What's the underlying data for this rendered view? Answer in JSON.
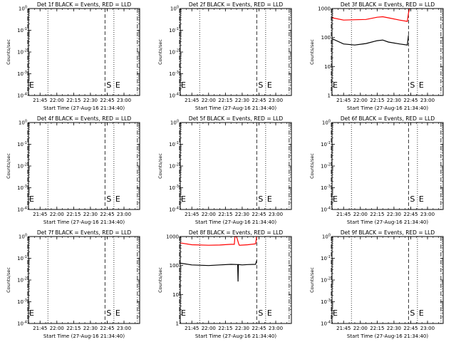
{
  "chart_data": [
    {
      "type": "line",
      "title": "Det 1f BLACK = Events, RED = LLD",
      "xlabel": "Start Time (27-Aug-16 21:34:40)",
      "ylabel": "Counts/sec",
      "x_ticks": [
        "21:45",
        "22:00",
        "22:15",
        "22:30",
        "22:45",
        "23:00"
      ],
      "y_ticks": [
        "10^0",
        "10^-1",
        "10^-2",
        "10^-3",
        "10^-4"
      ],
      "ylim": [
        1,
        0.0001
      ],
      "y_scale": "log",
      "markers": [
        {
          "label": "E",
          "time": "21:34",
          "style": "dashdot"
        },
        {
          "label": "",
          "time": "21:52",
          "style": "dotted"
        },
        {
          "label": "S",
          "time": "22:43",
          "style": "dashed"
        },
        {
          "label": "E",
          "time": "22:51",
          "style": "dotted"
        },
        {
          "label": "",
          "time": "23:12",
          "style": "dashdot"
        }
      ],
      "series": []
    },
    {
      "type": "line",
      "title": "Det 2f BLACK = Events, RED = LLD",
      "xlabel": "Start Time (27-Aug-16 21:34:40)",
      "ylabel": "Counts/sec",
      "x_ticks": [
        "21:45",
        "22:00",
        "22:15",
        "22:30",
        "22:45",
        "23:00"
      ],
      "y_ticks": [
        "10^0",
        "10^-1",
        "10^-2",
        "10^-3",
        "10^-4"
      ],
      "ylim": [
        1,
        0.0001
      ],
      "y_scale": "log",
      "markers": [
        {
          "label": "E",
          "time": "21:34",
          "style": "dashdot"
        },
        {
          "label": "",
          "time": "21:52",
          "style": "dotted"
        },
        {
          "label": "S",
          "time": "22:43",
          "style": "dashed"
        },
        {
          "label": "E",
          "time": "22:51",
          "style": "dotted"
        },
        {
          "label": "",
          "time": "23:12",
          "style": "dashdot"
        }
      ],
      "series": []
    },
    {
      "type": "line",
      "title": "Det 3f BLACK = Events, RED = LLD",
      "xlabel": "Start Time (27-Aug-16 21:34:40)",
      "ylabel": "Counts/sec",
      "x_ticks": [
        "21:45",
        "22:00",
        "22:15",
        "22:30",
        "22:45",
        "23:00"
      ],
      "y_ticks": [
        "1000",
        "100",
        "10",
        "1"
      ],
      "ylim": [
        1,
        1000
      ],
      "y_scale": "log",
      "markers": [
        {
          "label": "E",
          "time": "21:34",
          "style": "dashdot"
        },
        {
          "label": "",
          "time": "21:52",
          "style": "dotted"
        },
        {
          "label": "S",
          "time": "22:43",
          "style": "dashed"
        },
        {
          "label": "E",
          "time": "22:51",
          "style": "dotted"
        },
        {
          "label": "",
          "time": "23:12",
          "style": "dashdot"
        }
      ],
      "series": [
        {
          "color": "#ff0000",
          "x": [
            "21:35",
            "21:45",
            "21:55",
            "22:05",
            "22:15",
            "22:20",
            "22:25",
            "22:35",
            "22:42",
            "22:43",
            "22:44"
          ],
          "y": [
            480,
            400,
            410,
            420,
            500,
            520,
            480,
            400,
            360,
            700,
            1000
          ]
        },
        {
          "color": "#000000",
          "x": [
            "21:35",
            "21:45",
            "21:55",
            "22:05",
            "22:15",
            "22:20",
            "22:25",
            "22:35",
            "22:42",
            "22:43"
          ],
          "y": [
            90,
            60,
            55,
            62,
            78,
            82,
            70,
            60,
            55,
            120
          ]
        }
      ]
    },
    {
      "type": "line",
      "title": "Det 4f BLACK = Events, RED = LLD",
      "xlabel": "Start Time (27-Aug-16 21:34:40)",
      "ylabel": "Counts/sec",
      "x_ticks": [
        "21:45",
        "22:00",
        "22:15",
        "22:30",
        "22:45",
        "23:00"
      ],
      "y_ticks": [
        "10^0",
        "10^-1",
        "10^-2",
        "10^-3",
        "10^-4"
      ],
      "ylim": [
        1,
        0.0001
      ],
      "y_scale": "log",
      "markers": [
        {
          "label": "E",
          "time": "21:34",
          "style": "dashdot"
        },
        {
          "label": "",
          "time": "21:52",
          "style": "dotted"
        },
        {
          "label": "S",
          "time": "22:43",
          "style": "dashed"
        },
        {
          "label": "E",
          "time": "22:51",
          "style": "dotted"
        },
        {
          "label": "",
          "time": "23:12",
          "style": "dashdot"
        }
      ],
      "series": []
    },
    {
      "type": "line",
      "title": "Det 5f BLACK = Events, RED = LLD",
      "xlabel": "Start Time (27-Aug-16 21:34:40)",
      "ylabel": "Counts/sec",
      "x_ticks": [
        "21:45",
        "22:00",
        "22:15",
        "22:30",
        "22:45",
        "23:00"
      ],
      "y_ticks": [
        "10^0",
        "10^-1",
        "10^-2",
        "10^-3",
        "10^-4"
      ],
      "ylim": [
        1,
        0.0001
      ],
      "y_scale": "log",
      "markers": [
        {
          "label": "E",
          "time": "21:34",
          "style": "dashdot"
        },
        {
          "label": "",
          "time": "21:52",
          "style": "dotted"
        },
        {
          "label": "S",
          "time": "22:43",
          "style": "dashed"
        },
        {
          "label": "E",
          "time": "22:51",
          "style": "dotted"
        },
        {
          "label": "",
          "time": "23:12",
          "style": "dashdot"
        }
      ],
      "series": []
    },
    {
      "type": "line",
      "title": "Det 6f BLACK = Events, RED = LLD",
      "xlabel": "Start Time (27-Aug-16 21:34:40)",
      "ylabel": "Counts/sec",
      "x_ticks": [
        "21:45",
        "22:00",
        "22:15",
        "22:30",
        "22:45",
        "23:00"
      ],
      "y_ticks": [
        "10^0",
        "10^-1",
        "10^-2",
        "10^-3",
        "10^-4"
      ],
      "ylim": [
        1,
        0.0001
      ],
      "y_scale": "log",
      "markers": [
        {
          "label": "E",
          "time": "21:34",
          "style": "dashdot"
        },
        {
          "label": "",
          "time": "21:52",
          "style": "dotted"
        },
        {
          "label": "S",
          "time": "22:43",
          "style": "dashed"
        },
        {
          "label": "E",
          "time": "22:51",
          "style": "dotted"
        },
        {
          "label": "",
          "time": "23:12",
          "style": "dashdot"
        }
      ],
      "series": []
    },
    {
      "type": "line",
      "title": "Det 7f BLACK = Events, RED = LLD",
      "xlabel": "Start Time (27-Aug-16 21:34:40)",
      "ylabel": "Counts/sec",
      "x_ticks": [
        "21:45",
        "22:00",
        "22:15",
        "22:30",
        "22:45",
        "23:00"
      ],
      "y_ticks": [
        "10^0",
        "10^-1",
        "10^-2",
        "10^-3",
        "10^-4"
      ],
      "ylim": [
        1,
        0.0001
      ],
      "y_scale": "log",
      "markers": [
        {
          "label": "E",
          "time": "21:34",
          "style": "dashdot"
        },
        {
          "label": "",
          "time": "21:52",
          "style": "dotted"
        },
        {
          "label": "S",
          "time": "22:43",
          "style": "dashed"
        },
        {
          "label": "E",
          "time": "22:51",
          "style": "dotted"
        },
        {
          "label": "",
          "time": "23:12",
          "style": "dashdot"
        }
      ],
      "series": []
    },
    {
      "type": "line",
      "title": "Det 8f BLACK = Events, RED = LLD",
      "xlabel": "Start Time (27-Aug-16 21:34:40)",
      "ylabel": "Counts/sec",
      "x_ticks": [
        "21:45",
        "22:00",
        "22:15",
        "22:30",
        "22:45",
        "23:00"
      ],
      "y_ticks": [
        "1000",
        "100",
        "10",
        "1"
      ],
      "ylim": [
        1,
        1000
      ],
      "y_scale": "log",
      "markers": [
        {
          "label": "E",
          "time": "21:34",
          "style": "dashdot"
        },
        {
          "label": "",
          "time": "21:52",
          "style": "dotted"
        },
        {
          "label": "S",
          "time": "22:43",
          "style": "dashed"
        },
        {
          "label": "E",
          "time": "22:51",
          "style": "dotted"
        },
        {
          "label": "",
          "time": "23:12",
          "style": "dashdot"
        }
      ],
      "series": [
        {
          "color": "#ff0000",
          "x": [
            "21:35",
            "21:45",
            "22:00",
            "22:10",
            "22:20",
            "22:23",
            "22:23.5",
            "22:25",
            "22:27",
            "22:27.5",
            "22:35",
            "22:42",
            "22:43"
          ],
          "y": [
            600,
            520,
            500,
            510,
            540,
            540,
            1000,
            1000,
            540,
            500,
            520,
            560,
            1000
          ]
        },
        {
          "color": "#000000",
          "x": [
            "21:35",
            "21:45",
            "22:00",
            "22:10",
            "22:20",
            "22:26",
            "22:26.3",
            "22:26.6",
            "22:30",
            "22:35",
            "22:42",
            "22:43"
          ],
          "y": [
            120,
            105,
            100,
            105,
            110,
            108,
            28,
            108,
            105,
            108,
            110,
            150
          ]
        }
      ]
    },
    {
      "type": "line",
      "title": "Det 9f BLACK = Events, RED = LLD",
      "xlabel": "Start Time (27-Aug-16 21:34:40)",
      "ylabel": "Counts/sec",
      "x_ticks": [
        "21:45",
        "22:00",
        "22:15",
        "22:30",
        "22:45",
        "23:00"
      ],
      "y_ticks": [
        "10^0",
        "10^-1",
        "10^-2",
        "10^-3",
        "10^-4"
      ],
      "ylim": [
        1,
        0.0001
      ],
      "y_scale": "log",
      "markers": [
        {
          "label": "E",
          "time": "21:34",
          "style": "dashdot"
        },
        {
          "label": "",
          "time": "21:52",
          "style": "dotted"
        },
        {
          "label": "S",
          "time": "22:43",
          "style": "dashed"
        },
        {
          "label": "E",
          "time": "22:51",
          "style": "dotted"
        },
        {
          "label": "",
          "time": "23:12",
          "style": "dashdot"
        }
      ],
      "series": []
    }
  ]
}
